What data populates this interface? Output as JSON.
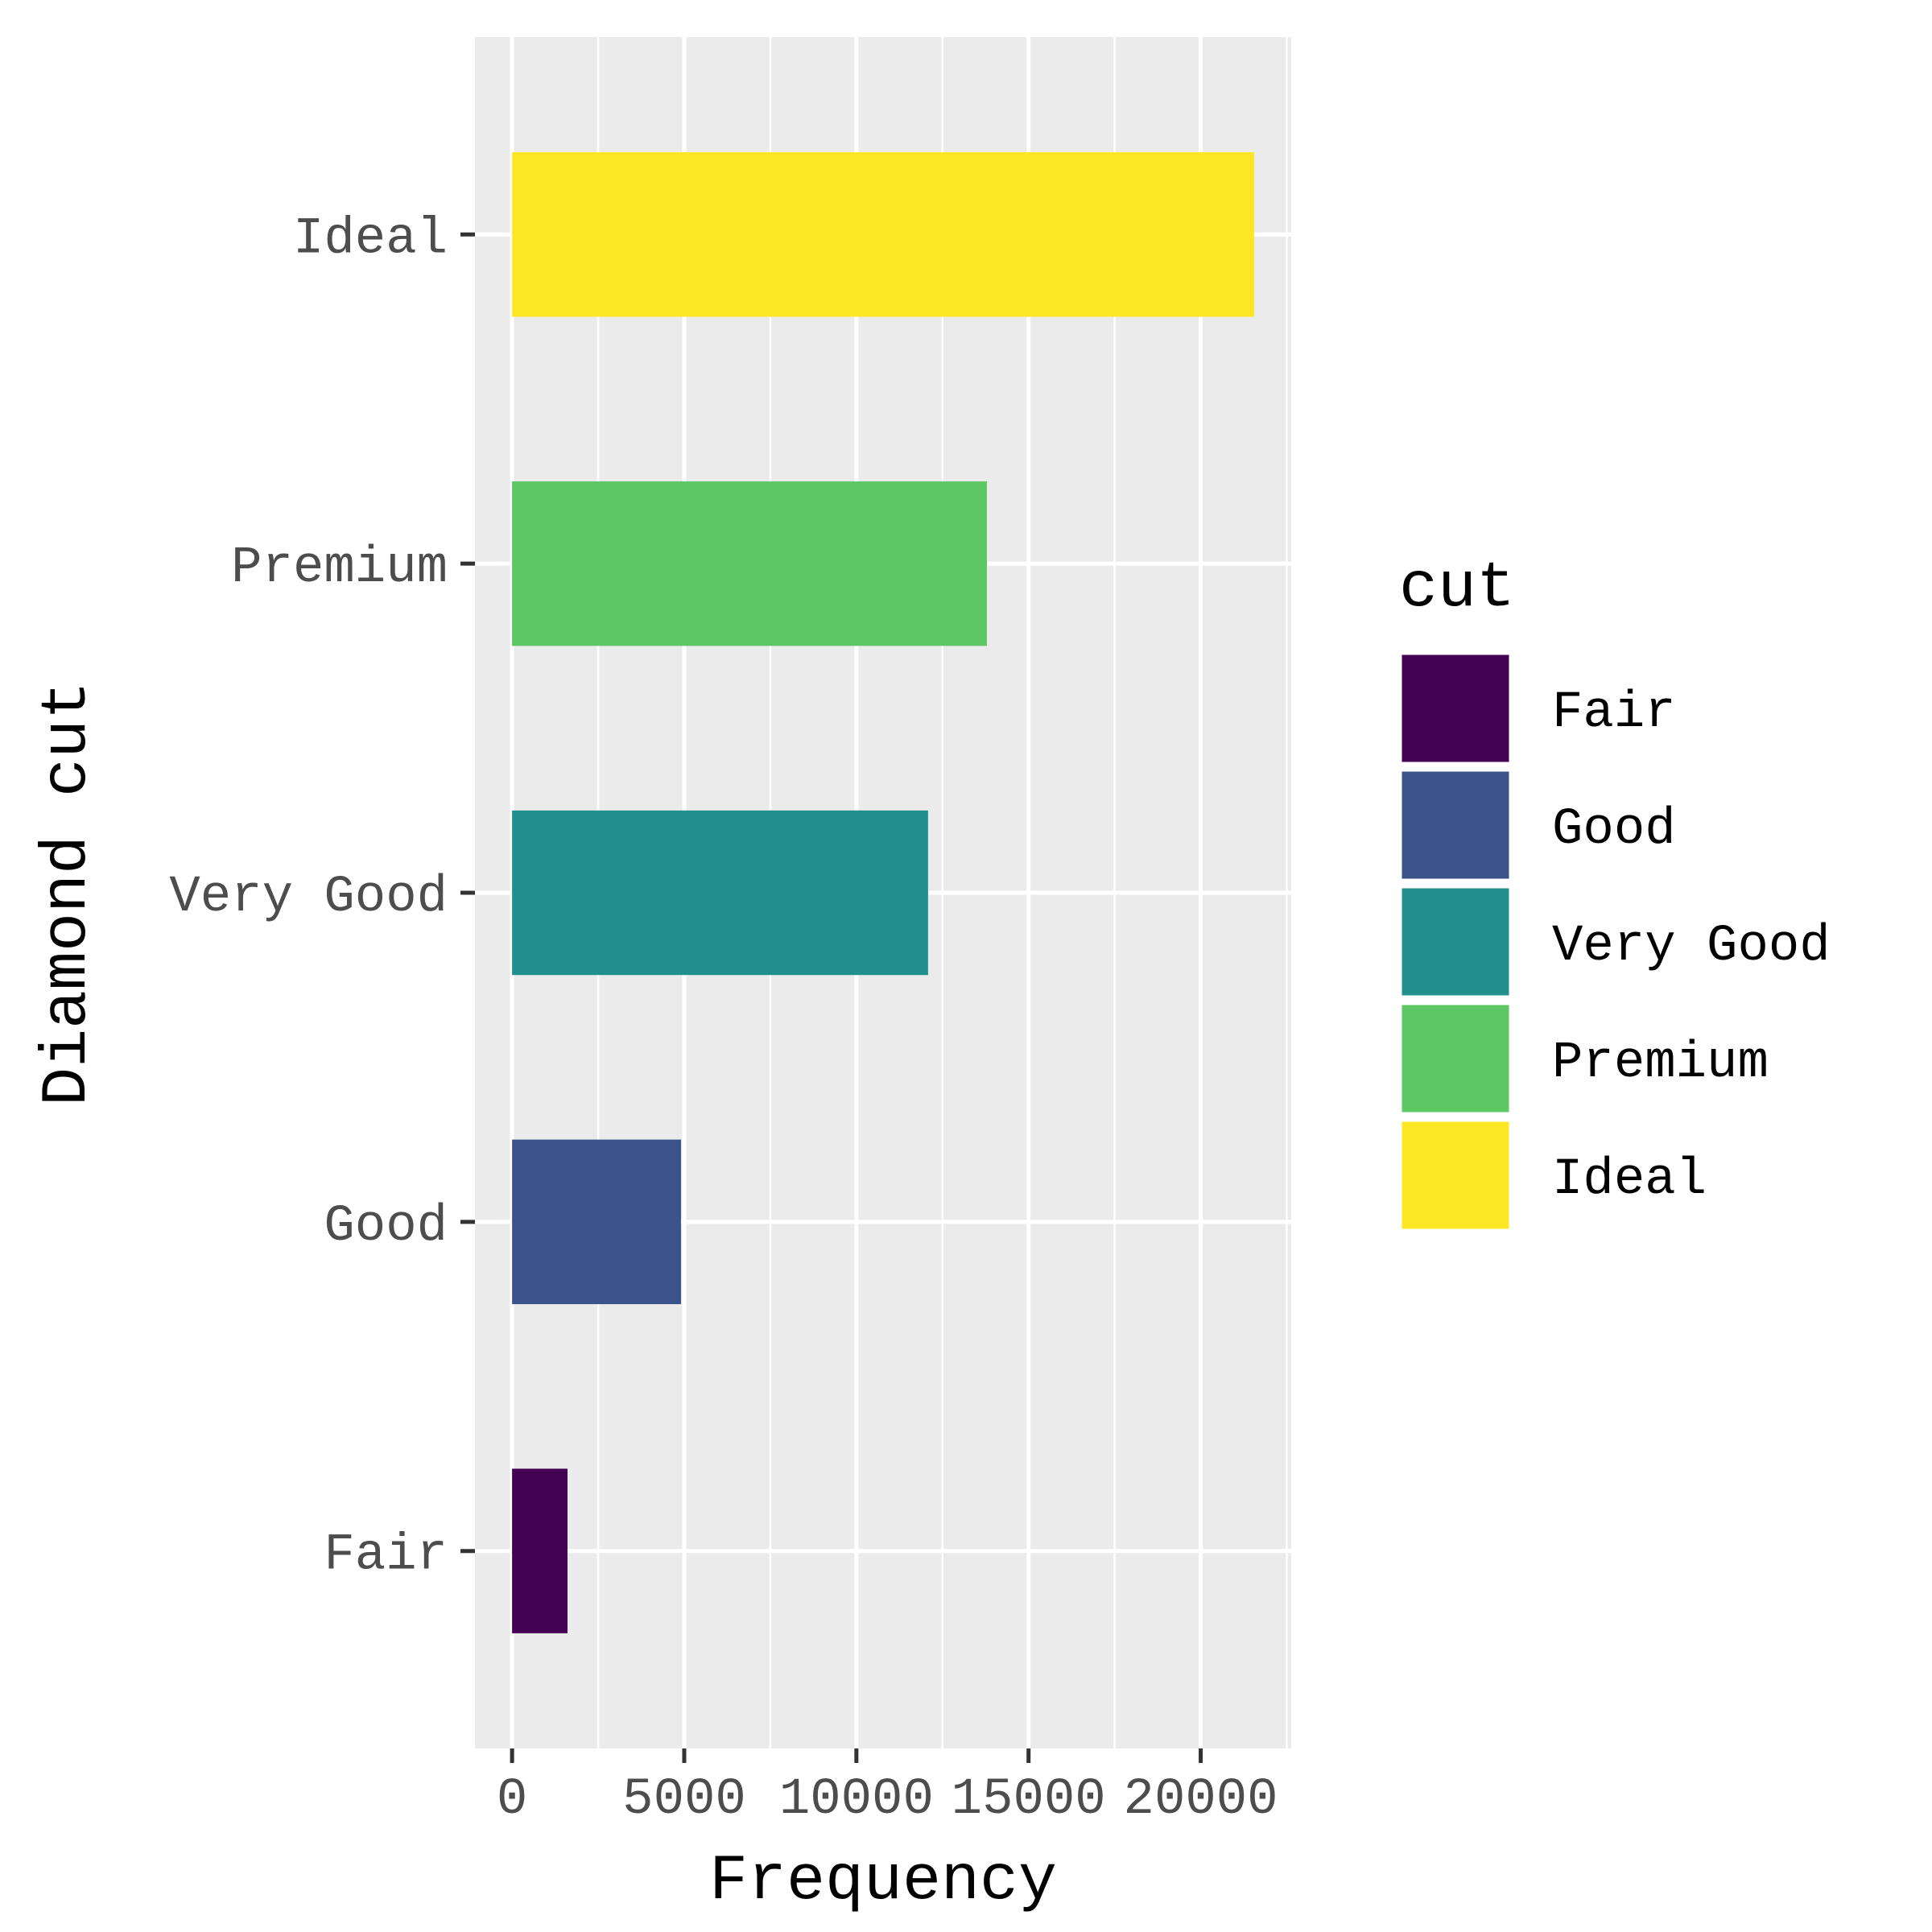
{
  "chart_data": {
    "type": "bar",
    "orientation": "horizontal",
    "categories": [
      "Fair",
      "Good",
      "Very Good",
      "Premium",
      "Ideal"
    ],
    "values": [
      1610,
      4906,
      12082,
      13791,
      21551
    ],
    "colors": [
      "#440154",
      "#3B528B",
      "#21908C",
      "#5DC863",
      "#FDE725"
    ],
    "xlabel": "Frequency",
    "ylabel": "Diamond cut",
    "xlim": [
      -1078,
      22629
    ],
    "x_ticks": [
      0,
      5000,
      10000,
      15000,
      20000
    ],
    "x_tick_labels": [
      "0",
      "5000",
      "10000",
      "15000",
      "20000"
    ],
    "grid": true,
    "panel_background": "#EBEBEB",
    "legend": {
      "title": "cut",
      "placement": "right",
      "entries": [
        "Fair",
        "Good",
        "Very Good",
        "Premium",
        "Ideal"
      ]
    }
  }
}
